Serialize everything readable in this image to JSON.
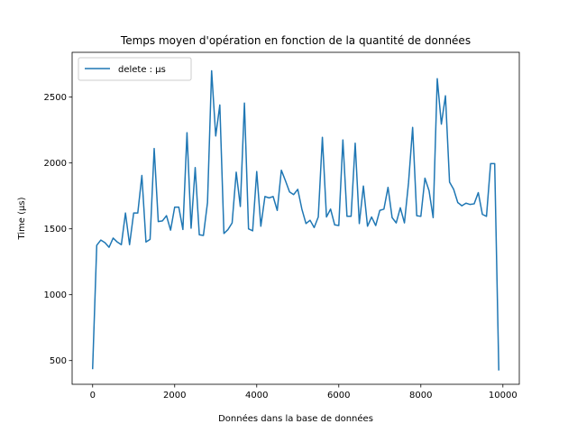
{
  "chart_data": {
    "type": "line",
    "title": "Temps moyen d'opération en fonction de la quantité de données",
    "xlabel": "Données dans la base de données",
    "ylabel": "Time (µs)",
    "xlim": [
      -500,
      10400
    ],
    "ylim": [
      320,
      2840
    ],
    "xticks": [
      0,
      2000,
      4000,
      6000,
      8000,
      10000
    ],
    "yticks": [
      500,
      1000,
      1500,
      2000,
      2500
    ],
    "grid": false,
    "legend_position": "top-left",
    "series": [
      {
        "name": "delete : µs",
        "color": "#1f77b4",
        "x": [
          0,
          100,
          200,
          300,
          400,
          500,
          600,
          700,
          800,
          900,
          1000,
          1100,
          1200,
          1300,
          1400,
          1500,
          1600,
          1700,
          1800,
          1900,
          2000,
          2100,
          2200,
          2300,
          2400,
          2500,
          2600,
          2700,
          2800,
          2900,
          3000,
          3100,
          3200,
          3300,
          3400,
          3500,
          3600,
          3700,
          3800,
          3900,
          4000,
          4100,
          4200,
          4300,
          4400,
          4500,
          4600,
          4700,
          4800,
          4900,
          5000,
          5100,
          5200,
          5300,
          5400,
          5500,
          5600,
          5700,
          5800,
          5900,
          6000,
          6100,
          6200,
          6300,
          6400,
          6500,
          6600,
          6700,
          6800,
          6900,
          7000,
          7100,
          7200,
          7300,
          7400,
          7500,
          7600,
          7700,
          7800,
          7900,
          8000,
          8100,
          8200,
          8300,
          8400,
          8500,
          8600,
          8700,
          8800,
          8900,
          9000,
          9100,
          9200,
          9300,
          9400,
          9500,
          9600,
          9700,
          9800,
          9900
        ],
        "values": [
          440,
          1375,
          1415,
          1395,
          1360,
          1430,
          1400,
          1380,
          1620,
          1380,
          1620,
          1620,
          1905,
          1400,
          1420,
          2110,
          1555,
          1560,
          1600,
          1490,
          1665,
          1665,
          1495,
          2230,
          1505,
          1965,
          1455,
          1450,
          1700,
          2700,
          2205,
          2440,
          1465,
          1495,
          1545,
          1930,
          1670,
          2455,
          1500,
          1485,
          1935,
          1520,
          1745,
          1735,
          1745,
          1640,
          1945,
          1865,
          1780,
          1760,
          1800,
          1650,
          1540,
          1565,
          1510,
          1590,
          2195,
          1590,
          1650,
          1530,
          1525,
          2175,
          1595,
          1595,
          2150,
          1540,
          1825,
          1520,
          1590,
          1525,
          1640,
          1650,
          1815,
          1585,
          1545,
          1660,
          1545,
          1850,
          2270,
          1600,
          1595,
          1885,
          1790,
          1585,
          2640,
          2295,
          2510,
          1855,
          1800,
          1700,
          1675,
          1695,
          1685,
          1690,
          1775,
          1610,
          1595,
          1995,
          1995,
          430
        ]
      }
    ]
  }
}
